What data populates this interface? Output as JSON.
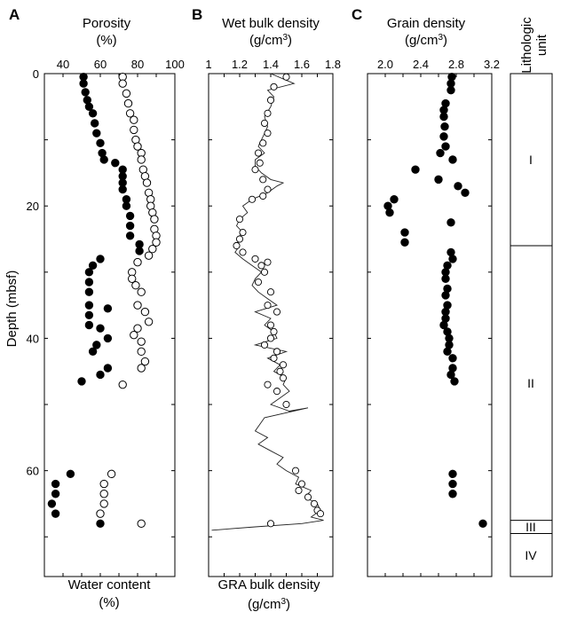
{
  "chart_data": [
    {
      "type": "scatter",
      "panel": "A",
      "title": "Porosity",
      "title_unit": "(%)",
      "xlabel": "Water content",
      "xlabel_unit": "(%)",
      "ylabel": "Depth (mbsf)",
      "xlim": [
        30,
        100
      ],
      "ylim": [
        0,
        76
      ],
      "y_reversed": true,
      "xticks": [
        40,
        60,
        80,
        100
      ],
      "yticks": [
        0,
        20,
        40,
        60
      ],
      "series": [
        {
          "marker": "filled",
          "x": [
            51,
            51,
            52,
            53,
            54,
            56,
            57,
            58,
            60,
            61,
            62,
            68,
            72,
            72,
            72,
            72,
            74,
            74,
            76,
            76,
            76,
            81,
            81,
            60,
            56,
            54,
            54,
            54,
            54,
            64,
            54,
            54,
            60,
            64,
            58,
            56,
            64,
            60,
            50,
            44,
            36,
            36,
            34,
            36,
            60
          ],
          "y": [
            0.5,
            1.5,
            2.8,
            4,
            5,
            6,
            7.5,
            9,
            10.5,
            12,
            13,
            13.5,
            14.5,
            15.5,
            16.5,
            17.5,
            19,
            20,
            21.5,
            23,
            24.5,
            25.8,
            26.8,
            28,
            29,
            30,
            31.5,
            33,
            35,
            35.5,
            36.5,
            38,
            38.5,
            40,
            41,
            42,
            44.5,
            45.5,
            46.5,
            60.5,
            62,
            63.5,
            65,
            66.5,
            68
          ]
        },
        {
          "marker": "open",
          "x": [
            72,
            72,
            74,
            75,
            76,
            78,
            78,
            79,
            80,
            82,
            82,
            83,
            84,
            85,
            86,
            87,
            87,
            88,
            89,
            89,
            90,
            90,
            88,
            86,
            80,
            77,
            77,
            79,
            82,
            80,
            84,
            86,
            80,
            78,
            82,
            82,
            84,
            82,
            72,
            66,
            62,
            62,
            62,
            60,
            82
          ],
          "y": [
            0.5,
            1.5,
            3,
            4.5,
            6,
            7,
            8.5,
            10,
            11,
            12,
            13,
            14.5,
            15.5,
            16.5,
            18,
            19,
            20,
            21,
            22,
            23.5,
            24.5,
            25.5,
            26.5,
            27.5,
            28.5,
            30,
            31,
            32,
            33,
            35,
            36,
            37.5,
            38.5,
            39.5,
            40.5,
            42,
            43.5,
            44.5,
            47,
            60.5,
            62,
            63.5,
            65,
            66.5,
            68
          ]
        }
      ]
    },
    {
      "type": "line",
      "panel": "B",
      "title": "Wet bulk density",
      "title_unit": "(g/cm3)",
      "xlabel": "GRA bulk density",
      "xlabel_unit": "(g/cm3)",
      "xlim": [
        1,
        1.8
      ],
      "ylim": [
        0,
        76
      ],
      "y_reversed": true,
      "xticks": [
        1,
        1.2,
        1.4,
        1.6,
        1.8
      ],
      "series": [
        {
          "marker": "line",
          "x": [
            1.4,
            1.55,
            1.38,
            1.42,
            1.4,
            1.36,
            1.38,
            1.35,
            1.32,
            1.36,
            1.3,
            1.3,
            1.34,
            1.4,
            1.48,
            1.44,
            1.38,
            1.28,
            1.22,
            1.25,
            1.2,
            1.18,
            1.22,
            1.18,
            1.2,
            1.17,
            1.22,
            1.28,
            1.34,
            1.3,
            1.28,
            1.32,
            1.38,
            1.44,
            1.3,
            1.4,
            1.36,
            1.42,
            1.44,
            1.3,
            1.5,
            1.38,
            1.46,
            1.42,
            1.5,
            1.48,
            1.52,
            1.46,
            1.4,
            1.52,
            1.64,
            1.36,
            1.3,
            1.38,
            1.32,
            1.4,
            1.48,
            1.44,
            1.5,
            1.58,
            1.56,
            1.66,
            1.62,
            1.7,
            1.72,
            1.66,
            1.74,
            1.6,
            1.3,
            1.02
          ],
          "y": [
            0,
            1.5,
            2.5,
            3.5,
            5,
            6.5,
            8,
            9.5,
            11,
            12,
            13,
            14,
            15,
            16,
            16.5,
            17,
            18,
            19,
            20,
            21,
            22,
            23,
            24,
            25,
            26,
            27,
            28,
            29,
            30,
            31,
            32,
            33,
            34,
            35,
            36,
            37,
            38,
            39,
            40,
            41,
            42,
            43,
            44,
            45,
            46,
            47,
            48,
            49,
            50,
            51,
            50.5,
            52,
            54,
            55,
            56,
            57,
            58,
            59,
            60,
            61,
            62,
            63,
            64,
            65,
            66,
            67,
            67.5,
            68,
            68.5,
            69
          ]
        },
        {
          "marker": "open",
          "x": [
            1.5,
            1.42,
            1.4,
            1.38,
            1.36,
            1.38,
            1.35,
            1.32,
            1.33,
            1.3,
            1.35,
            1.38,
            1.35,
            1.28,
            1.2,
            1.22,
            1.2,
            1.18,
            1.22,
            1.3,
            1.38,
            1.34,
            1.36,
            1.32,
            1.4,
            1.38,
            1.44,
            1.4,
            1.42,
            1.4,
            1.36,
            1.44,
            1.42,
            1.48,
            1.46,
            1.48,
            1.38,
            1.44,
            1.5,
            1.56,
            1.6,
            1.58,
            1.64,
            1.68,
            1.7,
            1.72,
            1.4
          ],
          "y": [
            0.5,
            2,
            4,
            6,
            7.5,
            9,
            10.5,
            12,
            13.5,
            14.5,
            16,
            17.5,
            18.5,
            19,
            22,
            24,
            25,
            26,
            27,
            28,
            28.5,
            29,
            30,
            31.5,
            33,
            35,
            36,
            38,
            39,
            40,
            41,
            42,
            43,
            44,
            45,
            46,
            47,
            48,
            50,
            60,
            62,
            63,
            64,
            65,
            66,
            66.5,
            68
          ]
        }
      ]
    },
    {
      "type": "scatter",
      "panel": "C",
      "title": "Grain density",
      "title_unit": "(g/cm3)",
      "xlim": [
        1.8,
        3.2
      ],
      "ylim": [
        0,
        76
      ],
      "y_reversed": true,
      "xticks": [
        2.0,
        2.4,
        2.8,
        3.2
      ],
      "series": [
        {
          "marker": "filled",
          "x": [
            2.75,
            2.74,
            2.74,
            2.68,
            2.66,
            2.66,
            2.67,
            2.66,
            2.68,
            2.62,
            2.76,
            2.34,
            2.6,
            2.82,
            2.9,
            2.1,
            2.03,
            2.05,
            2.74,
            2.22,
            2.22,
            2.74,
            2.76,
            2.7,
            2.68,
            2.68,
            2.7,
            2.68,
            2.7,
            2.68,
            2.68,
            2.66,
            2.7,
            2.72,
            2.72,
            2.7,
            2.76,
            2.76,
            2.74,
            2.78,
            2.76,
            2.76,
            2.76,
            3.1
          ],
          "y": [
            0.5,
            1.5,
            2.5,
            4.5,
            5.5,
            6.5,
            8,
            9.5,
            11,
            12,
            13,
            14.5,
            16,
            17,
            18,
            19,
            20,
            21,
            22.5,
            24,
            25.5,
            27,
            28,
            29,
            30,
            31,
            32.5,
            33.5,
            35,
            36,
            37,
            38,
            39,
            40,
            41,
            42,
            43,
            44.5,
            45.5,
            46.5,
            60.5,
            62,
            63.5,
            68
          ]
        }
      ]
    },
    {
      "type": "table",
      "panel": "Lithologic unit",
      "title": "Lithologic",
      "title_line2": "unit",
      "units": [
        {
          "label": "I",
          "top": 0,
          "bottom": 26
        },
        {
          "label": "II",
          "top": 26,
          "bottom": 67.5
        },
        {
          "label": "III",
          "top": 67.5,
          "bottom": 69.5
        },
        {
          "label": "IV",
          "top": 69.5,
          "bottom": 76
        }
      ]
    }
  ]
}
